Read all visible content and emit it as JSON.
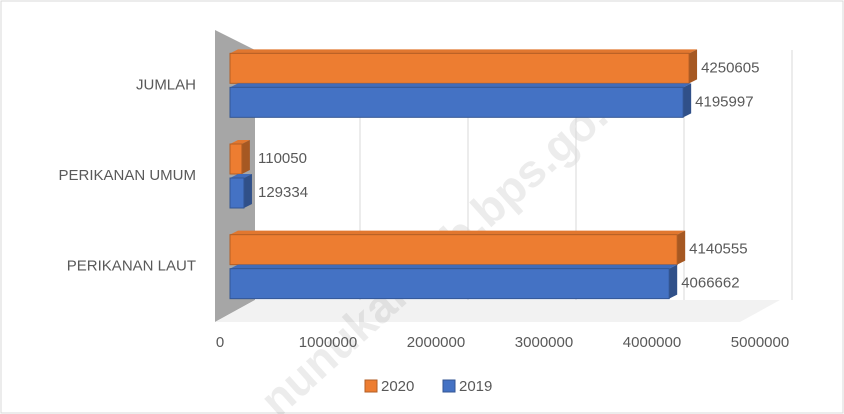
{
  "watermark": "nunukankab.bps.go.id",
  "chart_data": {
    "type": "bar",
    "orientation": "horizontal",
    "categories": [
      "JUMLAH",
      "PERIKANAN UMUM",
      "PERIKANAN LAUT"
    ],
    "series": [
      {
        "name": "2020",
        "color": "#ed7d31",
        "values": [
          4250605,
          110050,
          4140555
        ]
      },
      {
        "name": "2019",
        "color": "#4472c4",
        "values": [
          4195997,
          129334,
          4066662
        ]
      }
    ],
    "xlim": [
      0,
      5000000
    ],
    "xticks": [
      0,
      1000000,
      2000000,
      3000000,
      4000000,
      5000000
    ],
    "grid": true,
    "legend": "bottom"
  }
}
